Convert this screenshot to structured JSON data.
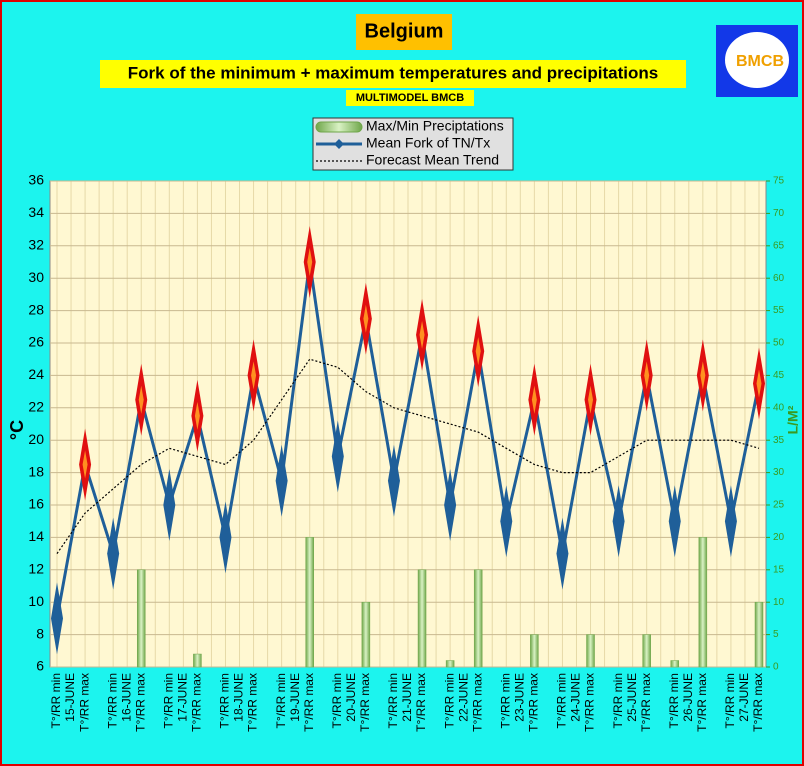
{
  "chart_data": {
    "type": "fork",
    "title": "Belgium",
    "subtitle": "Fork of the minimum + maximum temperatures and precipitations",
    "source": "MULTIMODEL BMCB",
    "logo": "BMCB",
    "ylabel": "°C",
    "y2label": "L/M²",
    "categories": [
      "T°/RR min",
      "T°/RR max",
      "T°/RR min",
      "T°/RR max",
      "T°/RR min",
      "T°/RR max",
      "T°/RR min",
      "T°/RR max",
      "T°/RR min",
      "T°/RR max",
      "T°/RR min",
      "T°/RR max",
      "T°/RR min",
      "T°/RR max",
      "T°/RR min",
      "T°/RR max",
      "T°/RR min",
      "T°/RR max",
      "T°/RR min",
      "T°/RR max",
      "T°/RR min",
      "T°/RR max",
      "T°/RR min",
      "T°/RR max",
      "T°/RR min",
      "T°/RR max"
    ],
    "days": [
      "15-JUNE",
      "16-JUNE",
      "17-JUNE",
      "18-JUNE",
      "19-JUNE",
      "20-JUNE",
      "21-JUNE",
      "22-JUNE",
      "23-JUNE",
      "24-JUNE",
      "25-JUNE",
      "26-JUNE",
      "27-JUNE"
    ],
    "series": [
      {
        "name": "Max/Min Preciptations",
        "kind": "bar",
        "axis": "y2",
        "color": "#8cc66a",
        "values": [
          0,
          0,
          0,
          15,
          0,
          2,
          0,
          0,
          0,
          20,
          0,
          10,
          0,
          15,
          1,
          15,
          0,
          5,
          0,
          5,
          0,
          5,
          1,
          20,
          0,
          10
        ]
      },
      {
        "name": "Mean Fork of TN/Tx",
        "kind": "fork",
        "color": "#1f5f99",
        "max_color": "#e01010",
        "values": [
          9,
          18.5,
          13,
          22.5,
          16,
          21.5,
          14,
          24,
          17.5,
          31,
          19,
          27.5,
          17.5,
          26.5,
          16,
          25.5,
          15,
          22.5,
          13,
          22.5,
          15,
          24,
          15,
          24,
          15,
          23.5
        ]
      },
      {
        "name": "Forecast Mean Trend",
        "kind": "trend",
        "color": "#000000",
        "values": [
          13,
          15.5,
          17,
          18.5,
          19.5,
          19,
          18.5,
          20,
          22.5,
          25,
          24.5,
          23,
          22,
          21.5,
          21,
          20.5,
          19.5,
          18.5,
          18,
          18,
          19,
          20,
          20,
          20,
          20,
          19.5
        ]
      }
    ],
    "ylim": [
      6,
      36
    ],
    "yticks": [
      6,
      8,
      10,
      12,
      14,
      16,
      18,
      20,
      22,
      24,
      26,
      28,
      30,
      32,
      34,
      36
    ],
    "y2lim": [
      0,
      75
    ],
    "y2ticks": [
      0,
      5,
      10,
      15,
      20,
      25,
      30,
      35,
      40,
      45,
      50,
      55,
      60,
      65,
      70,
      75
    ],
    "grid": true
  }
}
